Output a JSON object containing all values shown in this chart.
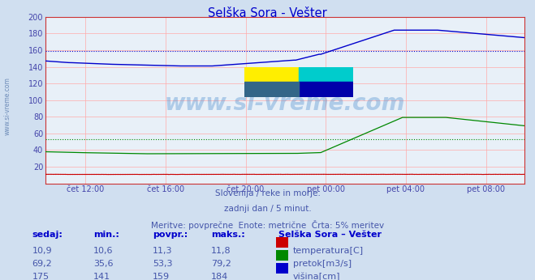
{
  "title": "Selška Sora - Vešter",
  "title_color": "#0000cc",
  "bg_color": "#d0dff0",
  "plot_bg_color": "#e8f0f8",
  "grid_color_v": "#ffaaaa",
  "grid_color_h": "#ffaaaa",
  "ylim": [
    0,
    200
  ],
  "ytick_labels": [
    "",
    "20",
    "40",
    "60",
    "80",
    "100",
    "120",
    "140",
    "160",
    "180",
    "200"
  ],
  "ytick_vals": [
    0,
    20,
    40,
    60,
    80,
    100,
    120,
    140,
    160,
    180,
    200
  ],
  "xlabel_color": "#4444aa",
  "xtick_labels": [
    "čet 12:00",
    "čet 16:00",
    "čet 20:00",
    "pet 00:00",
    "pet 04:00",
    "pet 08:00"
  ],
  "n_points": 288,
  "temp_color": "#cc0000",
  "pretok_color": "#008800",
  "visina_color": "#0000cc",
  "avg_temp": 11.3,
  "avg_pretok": 53.3,
  "avg_visina": 159,
  "watermark_text": "www.si-vreme.com",
  "watermark_color": "#4488cc",
  "watermark_alpha": 0.35,
  "footer_line1": "Slovenija / reke in morje.",
  "footer_line2": "zadnji dan / 5 minut.",
  "footer_line3": "Meritve: povprečne  Enote: metrične  Črta: 5% meritev",
  "footer_color": "#4455aa",
  "table_headers": [
    "sedaj:",
    "min.:",
    "povpr.:",
    "maks.:"
  ],
  "table_temp": [
    "10,9",
    "10,6",
    "11,3",
    "11,8"
  ],
  "table_pretok": [
    "69,2",
    "35,6",
    "53,3",
    "79,2"
  ],
  "table_visina": [
    "175",
    "141",
    "159",
    "184"
  ],
  "legend_title": "Selška Sora – Vešter",
  "legend_temp": "temperatura[C]",
  "legend_pretok": "pretok[m3/s]",
  "legend_visina": "višina[cm]",
  "sidebar_text": "www.si-vreme.com",
  "sidebar_color": "#5577aa"
}
